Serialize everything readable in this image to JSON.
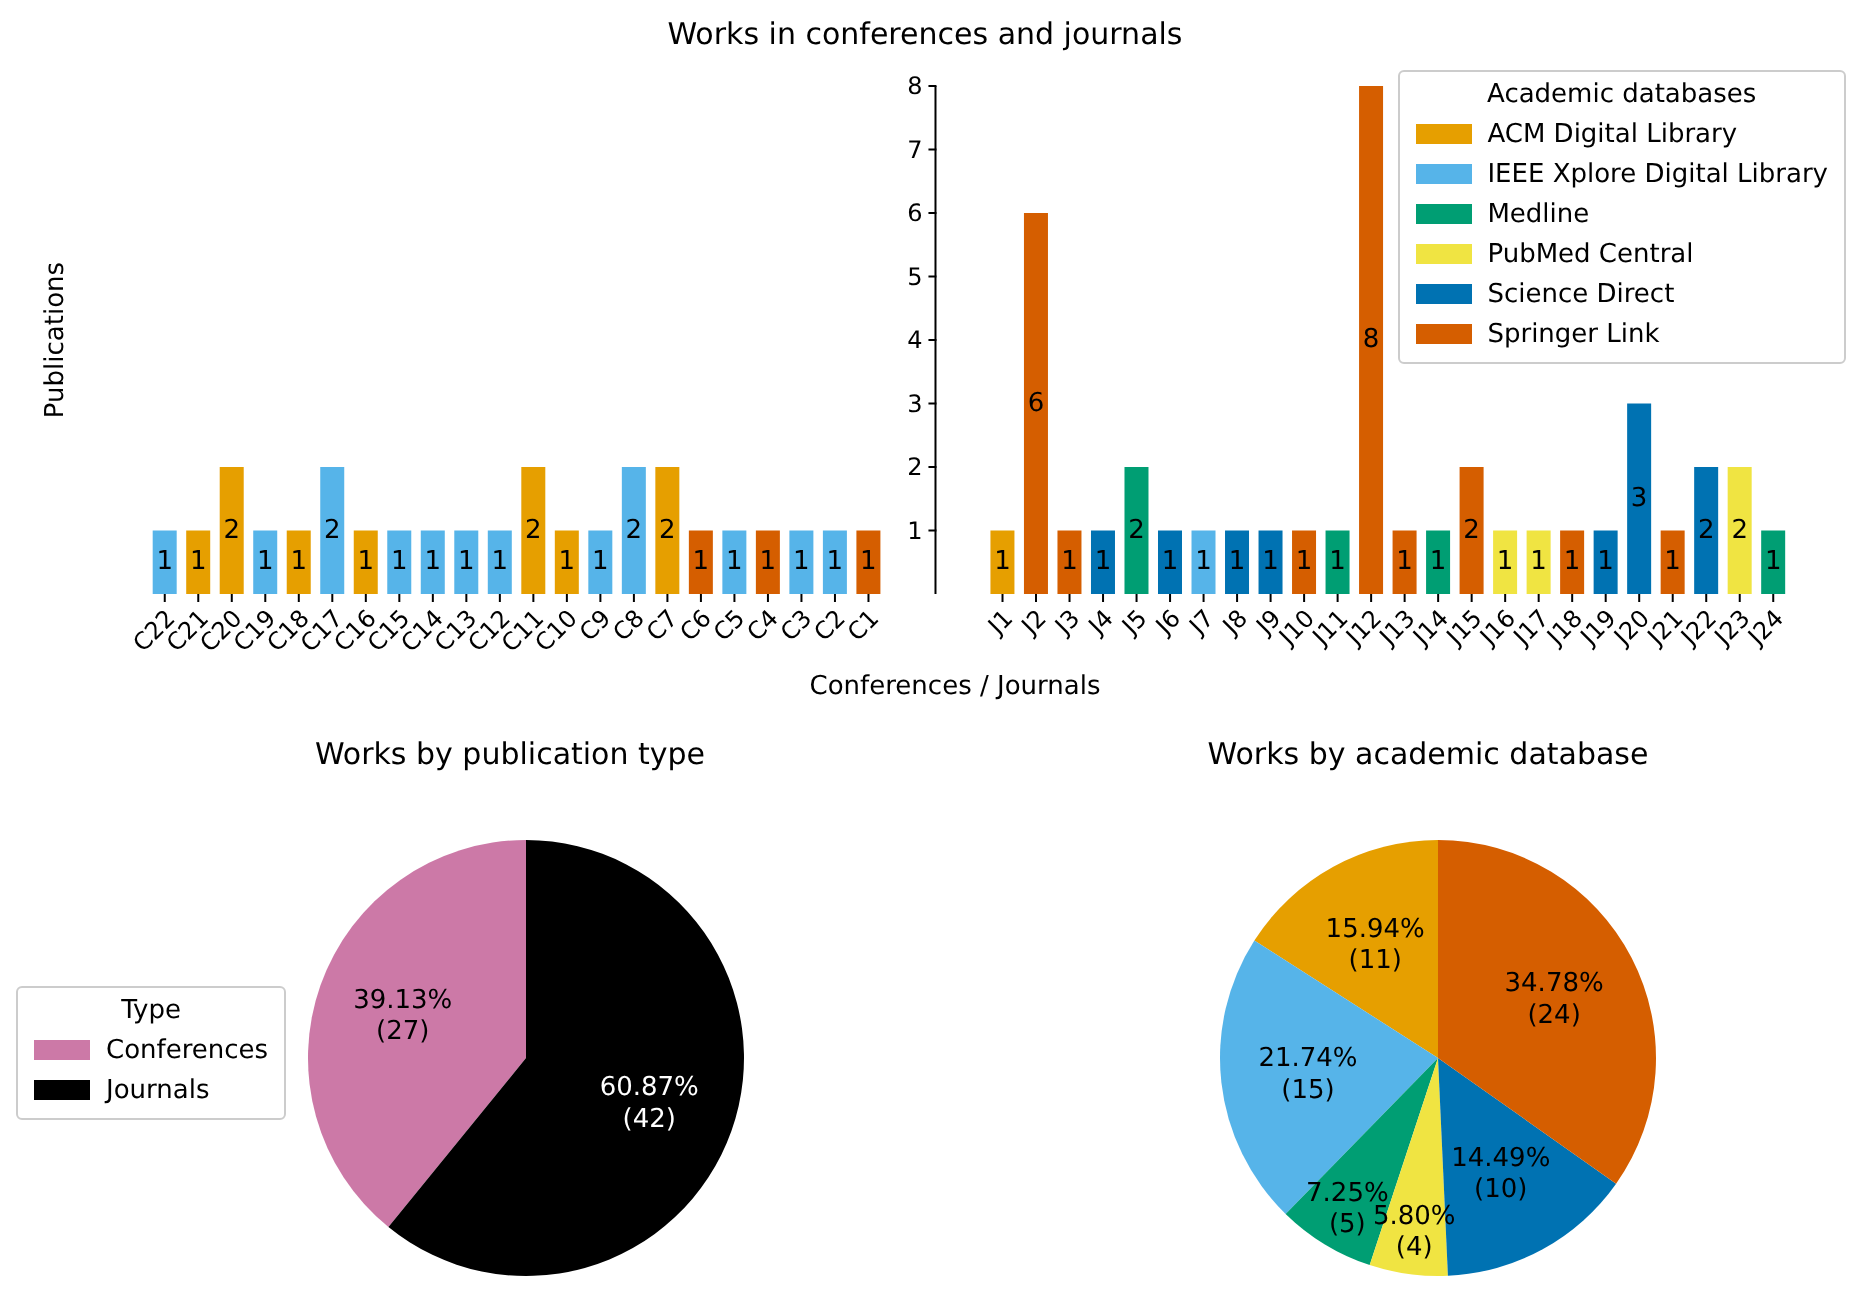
{
  "chart_data": [
    {
      "type": "bar",
      "title": "Works in conferences and journals",
      "xlabel": "Conferences / Journals",
      "ylabel": "Publications",
      "legend_title": "Academic databases",
      "legend": "top right",
      "stacked": true,
      "data_labels": true,
      "ylim": [
        0,
        8
      ],
      "yticks": [
        1,
        2,
        3,
        4,
        5,
        6,
        7,
        8
      ],
      "categories": [
        "C22",
        "C21",
        "C20",
        "C19",
        "C18",
        "C17",
        "C16",
        "C15",
        "C14",
        "C13",
        "C12",
        "C11",
        "C10",
        "C9",
        "C8",
        "C7",
        "C6",
        "C5",
        "C4",
        "C3",
        "C2",
        "C1",
        null,
        null,
        null,
        "J1",
        "J2",
        "J3",
        "J4",
        "J5",
        "J6",
        "J7",
        "J8",
        "J9",
        "J10",
        "J11",
        "J12",
        "J13",
        "J14",
        "J15",
        "J16",
        "J17",
        "J18",
        "J19",
        "J20",
        "J21",
        "J22",
        "J23",
        "J24"
      ],
      "series": [
        {
          "name": "ACM Digital Library",
          "color": "#e69f00",
          "values": [
            null,
            1,
            2,
            null,
            1,
            null,
            1,
            null,
            null,
            null,
            null,
            2,
            1,
            null,
            null,
            2,
            null,
            null,
            null,
            null,
            null,
            null,
            null,
            null,
            null,
            1,
            null,
            null,
            null,
            null,
            null,
            null,
            null,
            null,
            null,
            null,
            null,
            null,
            null,
            null,
            null,
            null,
            null,
            null,
            null,
            null,
            null,
            null,
            null
          ]
        },
        {
          "name": "IEEE Xplore Digital Library",
          "color": "#56b4e9",
          "values": [
            1,
            null,
            null,
            1,
            null,
            2,
            null,
            1,
            1,
            1,
            1,
            null,
            null,
            1,
            2,
            null,
            null,
            1,
            null,
            1,
            1,
            null,
            null,
            null,
            null,
            null,
            null,
            null,
            null,
            null,
            null,
            1,
            null,
            null,
            null,
            null,
            null,
            null,
            null,
            null,
            null,
            null,
            null,
            null,
            null,
            null,
            null,
            null,
            null
          ]
        },
        {
          "name": "Medline",
          "color": "#009e73",
          "values": [
            null,
            null,
            null,
            null,
            null,
            null,
            null,
            null,
            null,
            null,
            null,
            null,
            null,
            null,
            null,
            null,
            null,
            null,
            null,
            null,
            null,
            null,
            null,
            null,
            null,
            null,
            null,
            null,
            null,
            2,
            null,
            null,
            null,
            null,
            null,
            1,
            null,
            null,
            1,
            null,
            null,
            null,
            null,
            null,
            null,
            null,
            null,
            null,
            1
          ]
        },
        {
          "name": "PubMed Central",
          "color": "#f0e442",
          "values": [
            null,
            null,
            null,
            null,
            null,
            null,
            null,
            null,
            null,
            null,
            null,
            null,
            null,
            null,
            null,
            null,
            null,
            null,
            null,
            null,
            null,
            null,
            null,
            null,
            null,
            null,
            null,
            null,
            null,
            null,
            null,
            null,
            null,
            null,
            null,
            null,
            null,
            null,
            null,
            null,
            1,
            1,
            null,
            null,
            null,
            null,
            null,
            2,
            null
          ]
        },
        {
          "name": "Science Direct",
          "color": "#0072b2",
          "values": [
            null,
            null,
            null,
            null,
            null,
            null,
            null,
            null,
            null,
            null,
            null,
            null,
            null,
            null,
            null,
            null,
            null,
            null,
            null,
            null,
            null,
            null,
            null,
            null,
            null,
            null,
            null,
            null,
            1,
            null,
            1,
            null,
            1,
            1,
            null,
            null,
            null,
            null,
            null,
            null,
            null,
            null,
            null,
            1,
            3,
            null,
            2,
            null,
            null
          ]
        },
        {
          "name": "Springer Link",
          "color": "#d55e00",
          "values": [
            null,
            null,
            null,
            null,
            null,
            null,
            null,
            null,
            null,
            null,
            null,
            null,
            null,
            null,
            null,
            null,
            1,
            null,
            1,
            null,
            null,
            1,
            null,
            null,
            null,
            null,
            6,
            1,
            null,
            null,
            null,
            null,
            null,
            null,
            1,
            null,
            8,
            1,
            null,
            2,
            null,
            null,
            1,
            null,
            null,
            1,
            null,
            null,
            null
          ]
        }
      ]
    },
    {
      "type": "pie",
      "title": "Works by publication type",
      "legend": "left",
      "legend_title": "Type",
      "categories": [
        "Conferences",
        "Journals"
      ],
      "values": [
        27,
        42
      ],
      "colors": [
        "#cc79a7",
        "#000000"
      ],
      "value_labels": [
        "39.13%\n(27)",
        "60.87%\n(42)"
      ]
    },
    {
      "type": "pie",
      "title": "Works by academic database",
      "categories": [
        null,
        null,
        null,
        null,
        null,
        null
      ],
      "values": [
        11,
        15,
        5,
        4,
        10,
        24
      ],
      "colors": [
        "#e69f00",
        "#56b4e9",
        "#009e73",
        "#f0e442",
        "#0072b2",
        "#d55e00"
      ],
      "value_labels": [
        "15.94%\n(11)",
        "21.74%\n(15)",
        "7.25%\n(5)",
        "5.80%\n(4)",
        "14.49%\n(10)",
        "34.78%\n(24)"
      ]
    }
  ]
}
